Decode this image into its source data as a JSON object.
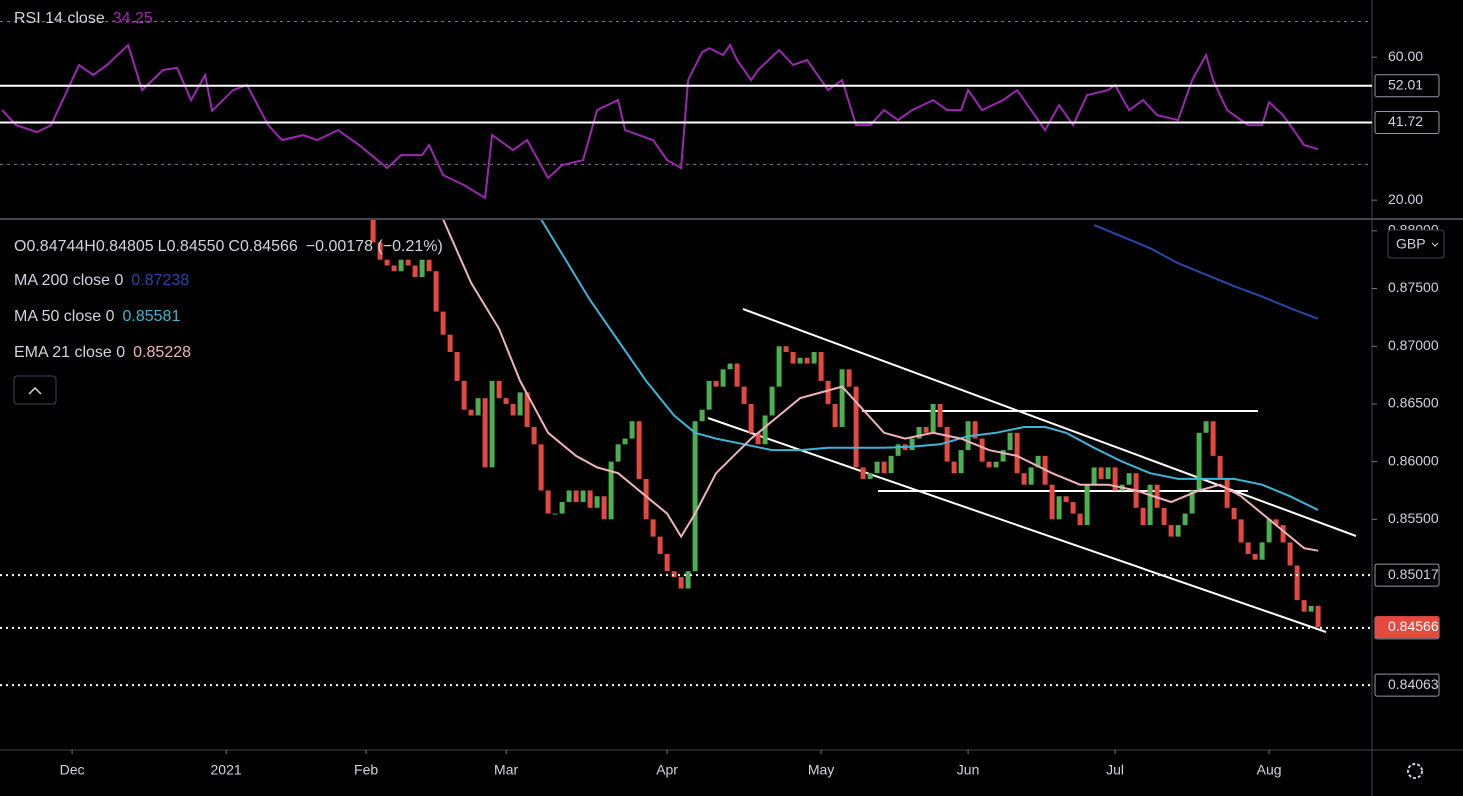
{
  "chart_data": [
    {
      "type": "line",
      "title": "RSI 14 close",
      "color": "#9c27b0",
      "series": [
        {
          "name": "RSI 14 close",
          "color": "#9c27b0",
          "value_label": "34.25",
          "x": [
            -10,
            -8,
            -5,
            -3,
            -1,
            1,
            3,
            5,
            8,
            10,
            13,
            15,
            17,
            19,
            20,
            23,
            25,
            28,
            30,
            33,
            35,
            38,
            41,
            45,
            47,
            50,
            51,
            53,
            56,
            59,
            60,
            63,
            65,
            68,
            70,
            73,
            75,
            78,
            79,
            83,
            85,
            87,
            88,
            90,
            91,
            93,
            94,
            95,
            97,
            98,
            101,
            103,
            105,
            108,
            110,
            112,
            114,
            116,
            118,
            120,
            123,
            125,
            127,
            128,
            130,
            133,
            135,
            137,
            139,
            141,
            143,
            145,
            148,
            149,
            151,
            153,
            155,
            158,
            160,
            162,
            163,
            165,
            168,
            170,
            171,
            173,
            175,
            176,
            178
          ],
          "values": [
            45.2,
            41,
            39,
            41,
            49.4,
            57.8,
            55,
            57.8,
            63.4,
            50.8,
            56.4,
            57,
            48,
            55,
            45,
            50.8,
            52.2,
            41,
            36.8,
            38.2,
            36.8,
            39.6,
            35.4,
            29,
            32.6,
            32.6,
            35.4,
            27,
            24.2,
            20.6,
            38.2,
            34,
            36.8,
            26.2,
            29.8,
            31.2,
            45.2,
            48,
            39.6,
            36.8,
            31.2,
            29,
            53.6,
            61.4,
            62.5,
            60.6,
            63.4,
            59.2,
            53.6,
            56.4,
            62,
            57.8,
            59.2,
            50.8,
            53.6,
            41,
            41,
            45.2,
            42.4,
            45.2,
            48,
            45.2,
            45.2,
            50.8,
            45.2,
            48,
            50.8,
            45.2,
            39.6,
            46.6,
            41,
            49.4,
            50.8,
            52.2,
            45.2,
            48,
            43.8,
            42.4,
            53.6,
            60.6,
            53.6,
            45.2,
            41,
            41,
            47.4,
            43.8,
            38.2,
            35.4,
            34.25
          ]
        }
      ],
      "levels": [
        52.01,
        41.72
      ],
      "band_levels": [
        70,
        30
      ],
      "xlim": [
        -10.3,
        185.7
      ],
      "ylim": [
        15,
        76
      ],
      "yticks": [
        {
          "value": 60,
          "label": "60.00"
        },
        {
          "value": 20,
          "label": "20.00"
        }
      ]
    },
    {
      "type": "candlestick",
      "currency": "GBP",
      "ohlc_labels": [
        "O0.84744",
        "H0.84805",
        "L0.84550",
        "C0.84566",
        "−0.00178 (−0.21%)"
      ],
      "up_color": "#4caf50",
      "down_color": "#e5483f",
      "x": [
        42,
        43,
        44,
        45,
        46,
        47,
        48,
        49,
        50,
        51,
        52,
        53,
        54,
        55,
        56,
        57,
        58,
        59,
        60,
        61,
        62,
        63,
        64,
        65,
        66,
        67,
        68,
        69,
        70,
        71,
        72,
        73,
        74,
        75,
        76,
        77,
        78,
        79,
        80,
        81,
        82,
        83,
        84,
        85,
        86,
        87,
        88,
        89,
        90,
        91,
        92,
        93,
        94,
        95,
        96,
        97,
        98,
        99,
        100,
        101,
        102,
        103,
        104,
        105,
        106,
        107,
        108,
        109,
        110,
        111,
        112,
        113,
        114,
        115,
        116,
        117,
        118,
        119,
        120,
        121,
        122,
        123,
        124,
        125,
        126,
        127,
        128,
        129,
        130,
        131,
        132,
        133,
        134,
        135,
        136,
        137,
        138,
        139,
        140,
        141,
        142,
        143,
        144,
        145,
        146,
        147,
        148,
        149,
        150,
        151,
        152,
        153,
        154,
        155,
        156,
        157,
        158,
        159,
        160,
        161,
        162,
        163,
        164,
        165,
        166,
        167,
        168,
        169,
        170,
        171,
        172,
        173,
        174,
        175,
        176,
        177,
        178
      ],
      "values": [
        0.881,
        0.879,
        0.8775,
        0.877,
        0.8765,
        0.8775,
        0.877,
        0.876,
        0.8775,
        0.8765,
        0.873,
        0.871,
        0.8695,
        0.867,
        0.8645,
        0.864,
        0.8655,
        0.8595,
        0.867,
        0.8655,
        0.865,
        0.864,
        0.866,
        0.863,
        0.8615,
        0.8575,
        0.8555,
        0.8555,
        0.8565,
        0.8575,
        0.8565,
        0.8575,
        0.856,
        0.857,
        0.855,
        0.86,
        0.8615,
        0.862,
        0.8635,
        0.8585,
        0.855,
        0.8535,
        0.852,
        0.8505,
        0.85,
        0.849,
        0.8505,
        0.8635,
        0.8645,
        0.867,
        0.8665,
        0.868,
        0.8685,
        0.8665,
        0.865,
        0.8625,
        0.8615,
        0.864,
        0.8665,
        0.87,
        0.8695,
        0.8685,
        0.869,
        0.8685,
        0.8695,
        0.867,
        0.865,
        0.863,
        0.868,
        0.8665,
        0.8595,
        0.8585,
        0.859,
        0.86,
        0.859,
        0.8605,
        0.8615,
        0.861,
        0.862,
        0.863,
        0.8625,
        0.865,
        0.863,
        0.86,
        0.859,
        0.861,
        0.8635,
        0.862,
        0.86,
        0.8595,
        0.86,
        0.861,
        0.8625,
        0.859,
        0.858,
        0.8595,
        0.8605,
        0.858,
        0.855,
        0.857,
        0.8565,
        0.8555,
        0.8545,
        0.858,
        0.8595,
        0.8585,
        0.8595,
        0.8575,
        0.858,
        0.859,
        0.856,
        0.8545,
        0.858,
        0.856,
        0.8545,
        0.8535,
        0.8545,
        0.8555,
        0.8575,
        0.8625,
        0.8635,
        0.8605,
        0.8585,
        0.856,
        0.855,
        0.853,
        0.852,
        0.8515,
        0.853,
        0.855,
        0.8545,
        0.853,
        0.851,
        0.848,
        0.847,
        0.8475,
        0.84566
      ],
      "series": [
        {
          "name": "MA 200 close 0",
          "color": "#2947a8",
          "value_label": "0.87238",
          "x": [
            146,
            150,
            154,
            158,
            162,
            166,
            170,
            174,
            178
          ],
          "values": [
            0.8805,
            0.8795,
            0.8785,
            0.8772,
            0.8762,
            0.8752,
            0.8743,
            0.8733,
            0.87238
          ]
        },
        {
          "name": "MA 50 close 0",
          "color": "#3cb6d6",
          "value_label": "0.85581",
          "x": [
            67,
            70,
            74,
            78,
            82,
            86,
            89,
            92,
            96,
            100,
            104,
            108,
            112,
            116,
            120,
            124,
            128,
            132,
            136,
            139,
            142,
            146,
            150,
            154,
            158,
            162,
            166,
            170,
            174,
            178
          ],
          "values": [
            0.881,
            0.878,
            0.874,
            0.8705,
            0.867,
            0.864,
            0.8625,
            0.862,
            0.8615,
            0.861,
            0.861,
            0.8612,
            0.8612,
            0.8612,
            0.8613,
            0.8615,
            0.8622,
            0.8625,
            0.863,
            0.863,
            0.8625,
            0.8612,
            0.86,
            0.859,
            0.8585,
            0.8585,
            0.8585,
            0.858,
            0.857,
            0.85581
          ]
        },
        {
          "name": "EMA 21 close 0",
          "color": "#f0b3bd",
          "value_label": "0.85228",
          "x": [
            53,
            57,
            61,
            64,
            68,
            72,
            75,
            78,
            82,
            85,
            87,
            89,
            92,
            97,
            101,
            104,
            107,
            110,
            113,
            116,
            119,
            123,
            127,
            131,
            135,
            140,
            144,
            148,
            152,
            157,
            161,
            164,
            167,
            170,
            173,
            176,
            178
          ],
          "values": [
            0.881,
            0.8755,
            0.8715,
            0.867,
            0.8625,
            0.8605,
            0.8595,
            0.859,
            0.857,
            0.8555,
            0.8535,
            0.8555,
            0.859,
            0.862,
            0.864,
            0.8655,
            0.866,
            0.8665,
            0.8645,
            0.8625,
            0.862,
            0.8625,
            0.862,
            0.861,
            0.8605,
            0.859,
            0.858,
            0.858,
            0.8575,
            0.8565,
            0.8575,
            0.858,
            0.857,
            0.8555,
            0.854,
            0.8525,
            0.85228
          ]
        }
      ],
      "levels": [
        0.85017,
        0.84559,
        0.84063
      ],
      "xlim": [
        -10.3,
        185.7
      ],
      "ylim": [
        0.83501,
        0.88094
      ],
      "yticks": [
        {
          "value": 0.88,
          "label": "0.88000"
        },
        {
          "value": 0.875,
          "label": "0.87500"
        },
        {
          "value": 0.87,
          "label": "0.87000"
        },
        {
          "value": 0.865,
          "label": "0.86500"
        },
        {
          "value": 0.86,
          "label": "0.86000"
        },
        {
          "value": 0.855,
          "label": "0.85500"
        }
      ],
      "xticks": [
        {
          "value": 0,
          "label": "Dec"
        },
        {
          "value": 22,
          "label": "2021"
        },
        {
          "value": 42,
          "label": "Feb"
        },
        {
          "value": 62,
          "label": "Mar"
        },
        {
          "value": 85,
          "label": "Apr"
        },
        {
          "value": 107,
          "label": "May"
        },
        {
          "value": 128,
          "label": "Jun"
        },
        {
          "value": 149,
          "label": "Jul"
        },
        {
          "value": 171,
          "label": "Aug"
        }
      ]
    }
  ]
}
